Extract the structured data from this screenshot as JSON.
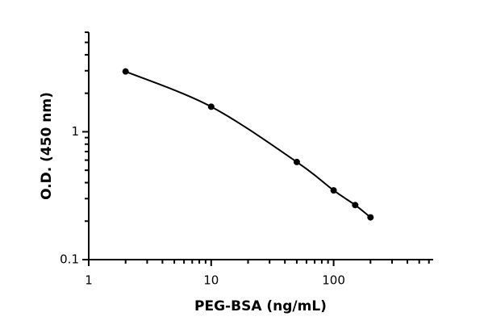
{
  "chart_data": {
    "type": "scatter",
    "x_label": "PEG-BSA (ng/mL)",
    "y_label": "O.D. (450 nm)",
    "x": [
      2,
      10,
      50,
      100,
      150,
      200
    ],
    "series": [
      {
        "color": "#000000",
        "values": [
          2.96,
          1.57,
          0.58,
          0.348,
          0.267,
          0.214
        ]
      }
    ],
    "xlim": [
      1,
      650
    ],
    "ylim": [
      0.1,
      6
    ],
    "xticks": [
      1,
      10,
      100
    ],
    "yticks": [
      0.1,
      1
    ],
    "xscale": "log",
    "yscale": "log",
    "minor_ticks": true,
    "fit_curve": true
  }
}
